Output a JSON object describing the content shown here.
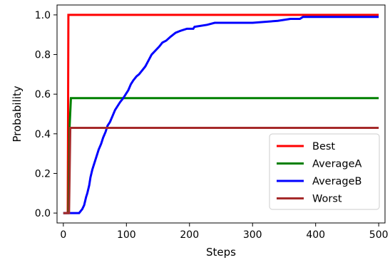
{
  "chart_data": {
    "type": "line",
    "title": "",
    "xlabel": "Steps",
    "ylabel": "Probability",
    "xlim": [
      -10,
      510
    ],
    "ylim": [
      -0.05,
      1.05
    ],
    "xticks": [
      0,
      100,
      200,
      300,
      400,
      500
    ],
    "yticks": [
      0.0,
      0.2,
      0.4,
      0.6,
      0.8,
      1.0
    ],
    "xtick_labels": [
      "0",
      "100",
      "200",
      "300",
      "400",
      "500"
    ],
    "ytick_labels": [
      "0.0",
      "0.2",
      "0.4",
      "0.6",
      "0.8",
      "1.0"
    ],
    "grid": false,
    "legend_position": "lower-right",
    "series": [
      {
        "name": "Best",
        "color": "#ff0000",
        "points": [
          [
            0,
            0
          ],
          [
            7,
            0
          ],
          [
            8,
            1.0
          ],
          [
            500,
            1.0
          ]
        ]
      },
      {
        "name": "AverageA",
        "color": "#008000",
        "points": [
          [
            0,
            0
          ],
          [
            8,
            0
          ],
          [
            10,
            0.44
          ],
          [
            12,
            0.58
          ],
          [
            500,
            0.58
          ]
        ]
      },
      {
        "name": "AverageB",
        "color": "#0000ff",
        "points": [
          [
            0,
            0
          ],
          [
            10,
            0
          ],
          [
            25,
            0
          ],
          [
            30,
            0.02
          ],
          [
            33,
            0.04
          ],
          [
            36,
            0.08
          ],
          [
            38,
            0.1
          ],
          [
            41,
            0.14
          ],
          [
            43,
            0.18
          ],
          [
            46,
            0.22
          ],
          [
            50,
            0.26
          ],
          [
            53,
            0.29
          ],
          [
            56,
            0.32
          ],
          [
            60,
            0.35
          ],
          [
            63,
            0.38
          ],
          [
            67,
            0.41
          ],
          [
            70,
            0.44
          ],
          [
            74,
            0.46
          ],
          [
            78,
            0.49
          ],
          [
            82,
            0.52
          ],
          [
            86,
            0.54
          ],
          [
            90,
            0.56
          ],
          [
            95,
            0.58
          ],
          [
            99,
            0.6
          ],
          [
            103,
            0.62
          ],
          [
            107,
            0.65
          ],
          [
            111,
            0.67
          ],
          [
            116,
            0.69
          ],
          [
            120,
            0.7
          ],
          [
            125,
            0.72
          ],
          [
            130,
            0.74
          ],
          [
            135,
            0.77
          ],
          [
            140,
            0.8
          ],
          [
            146,
            0.82
          ],
          [
            152,
            0.84
          ],
          [
            157,
            0.86
          ],
          [
            163,
            0.87
          ],
          [
            170,
            0.89
          ],
          [
            178,
            0.91
          ],
          [
            186,
            0.92
          ],
          [
            196,
            0.93
          ],
          [
            206,
            0.93
          ],
          [
            208,
            0.94
          ],
          [
            228,
            0.95
          ],
          [
            240,
            0.96
          ],
          [
            300,
            0.96
          ],
          [
            340,
            0.97
          ],
          [
            360,
            0.98
          ],
          [
            375,
            0.98
          ],
          [
            380,
            0.99
          ],
          [
            500,
            0.99
          ]
        ]
      },
      {
        "name": "Worst",
        "color": "#a52a2a",
        "points": [
          [
            0,
            0
          ],
          [
            9,
            0
          ],
          [
            11,
            0.43
          ],
          [
            500,
            0.43
          ]
        ]
      }
    ]
  }
}
